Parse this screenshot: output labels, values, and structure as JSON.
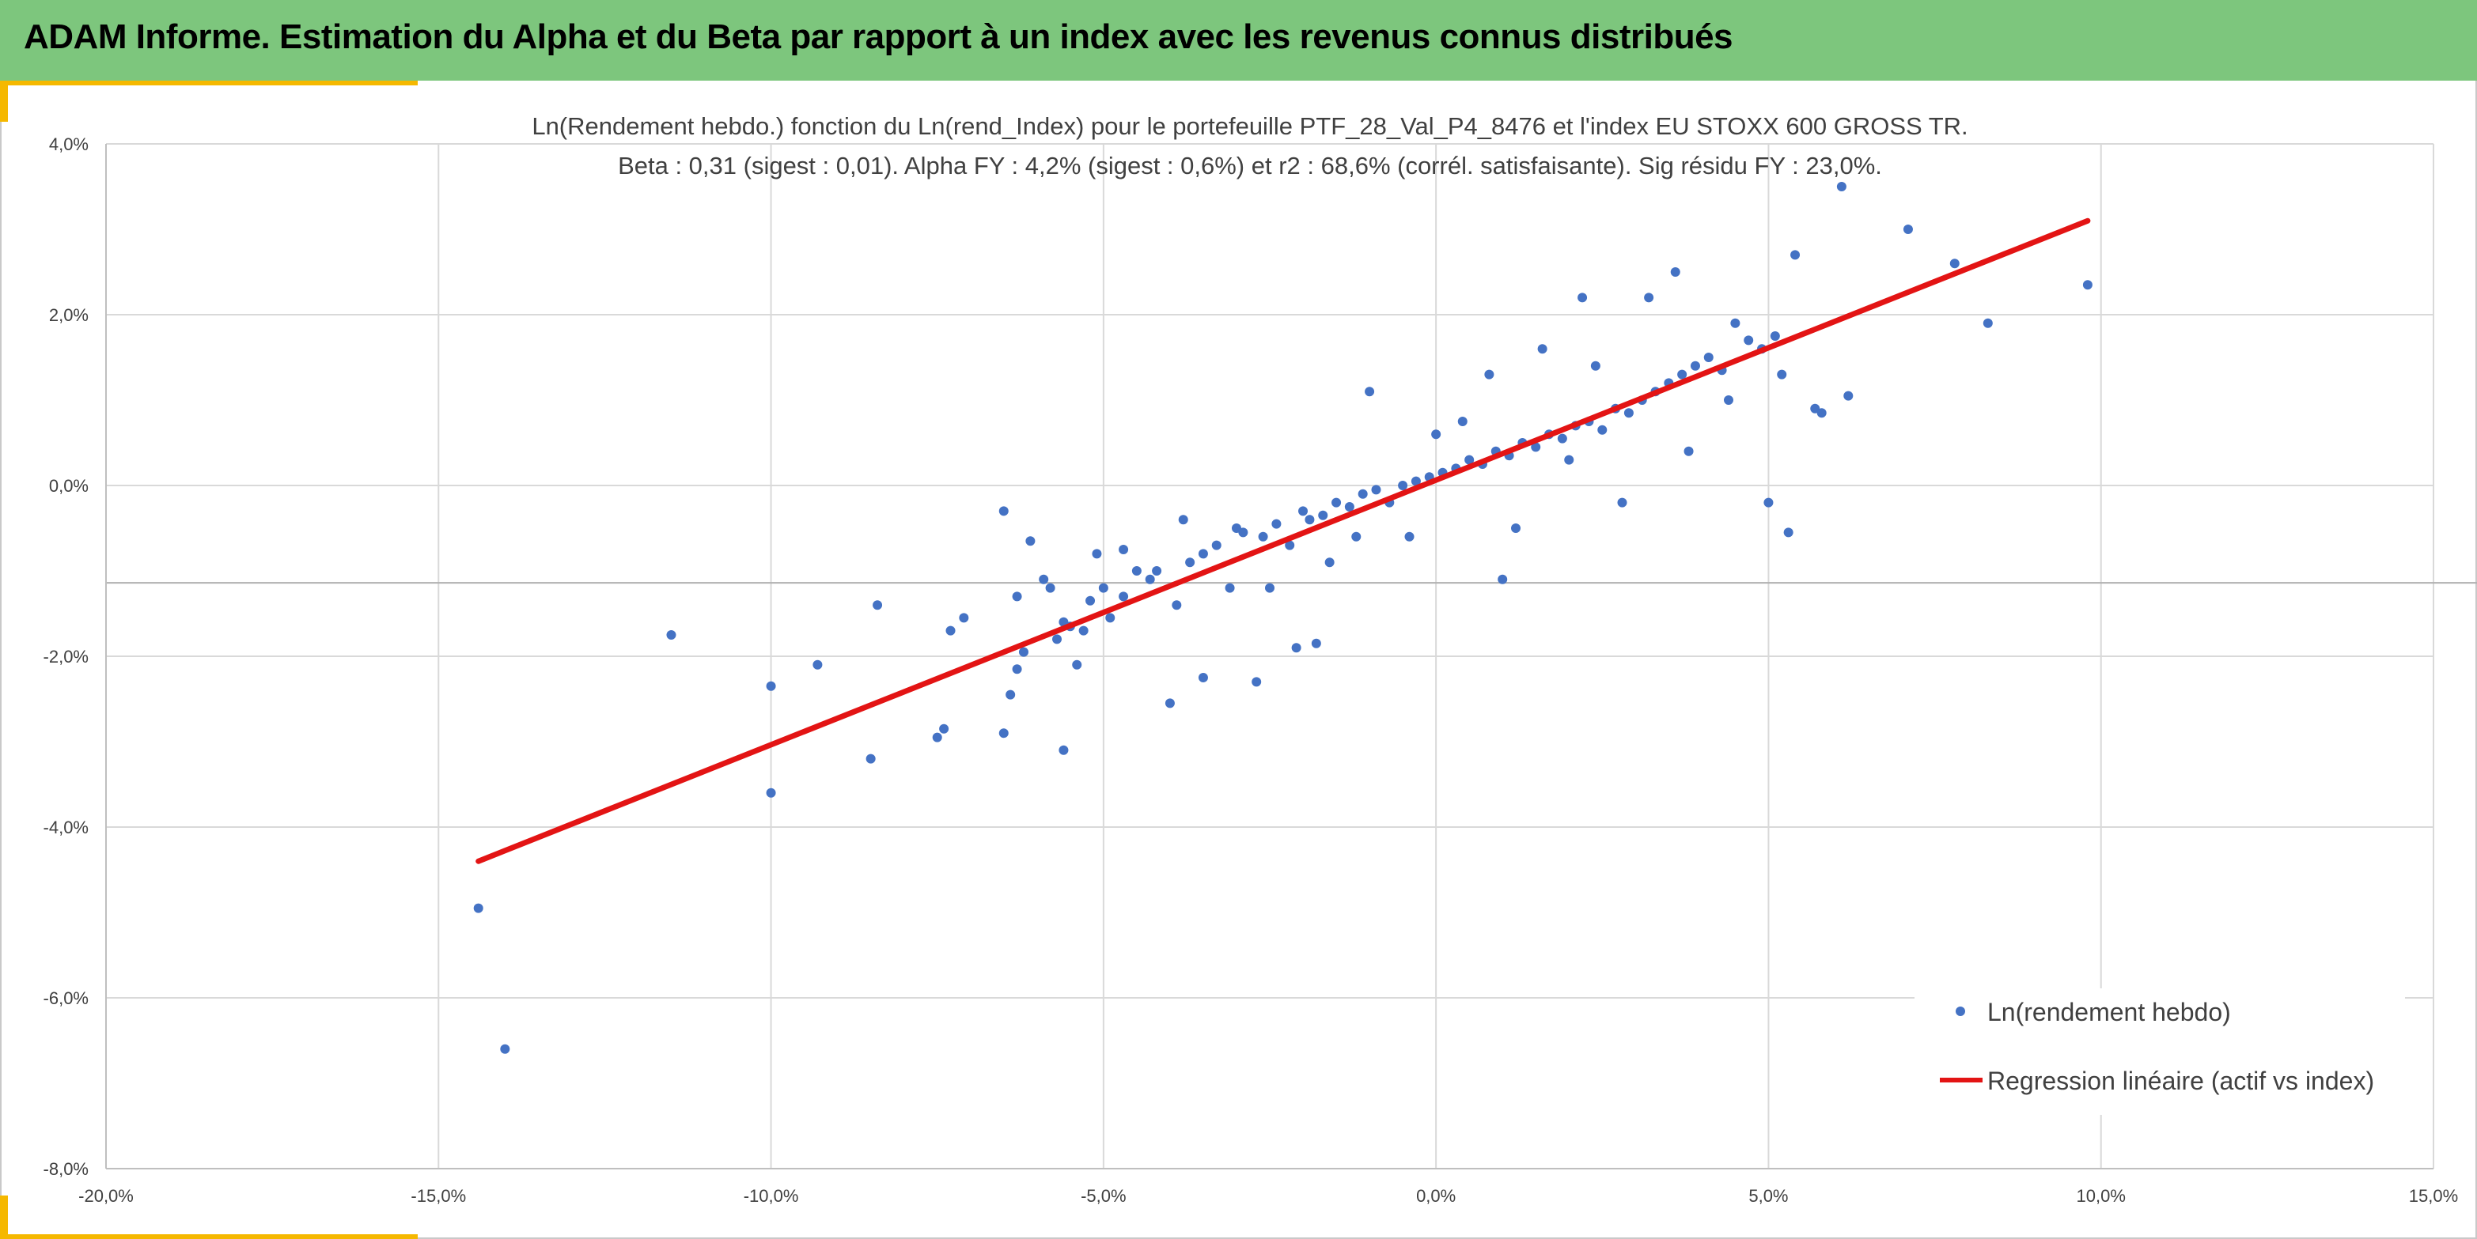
{
  "header": {
    "title": "ADAM Informe. Estimation du Alpha et du Beta par rapport à un index avec les revenus connus distribués"
  },
  "colors": {
    "header_bg": "#7dc67d",
    "accent": "#f5b800",
    "points": "#4472c4",
    "regression": "#e31414",
    "grid": "#d9d9d9"
  },
  "chart_data": {
    "type": "scatter",
    "title_line1": "Ln(Rendement hebdo.) fonction du Ln(rend_Index) pour le portefeuille PTF_28_Val_P4_8476 et l'index EU STOXX 600 GROSS TR.",
    "title_line2": "Beta : 0,31 (sigest : 0,01). Alpha FY : 4,2% (sigest : 0,6%) et r2 : 68,6% (corrél. satisfaisante). Sig résidu FY : 23,0%.",
    "xlim": [
      -20,
      15
    ],
    "ylim": [
      -8,
      4
    ],
    "x_ticks": [
      -20,
      -15,
      -10,
      -5,
      0,
      5,
      10,
      15
    ],
    "y_ticks": [
      -8,
      -6,
      -4,
      -2,
      0,
      2,
      4
    ],
    "x_tick_labels": [
      "-20,0%",
      "-15,0%",
      "-10,0%",
      "-5,0%",
      "0,0%",
      "5,0%",
      "10,0%",
      "15,0%"
    ],
    "y_tick_labels": [
      "-8,0%",
      "-6,0%",
      "-4,0%",
      "-2,0%",
      "0,0%",
      "2,0%",
      "4,0%"
    ],
    "grid": true,
    "legend_position": "bottom-right",
    "series": [
      {
        "name": "Ln(rendement hebdo)",
        "kind": "scatter",
        "x": [
          -14.4,
          -14.0,
          -11.5,
          -10.0,
          -10.0,
          -9.3,
          -8.5,
          -8.4,
          -7.5,
          -7.4,
          -7.3,
          -7.1,
          -6.5,
          -6.4,
          -6.3,
          -6.2,
          -6.1,
          -5.9,
          -5.8,
          -5.7,
          -5.6,
          -5.5,
          -5.4,
          -5.3,
          -5.2,
          -5.0,
          -4.9,
          -4.7,
          -4.5,
          -4.3,
          -4.0,
          -3.9,
          -3.7,
          -3.5,
          -3.3,
          -3.1,
          -2.9,
          -2.6,
          -2.4,
          -2.2,
          -2.0,
          -1.9,
          -1.7,
          -1.5,
          -1.3,
          -1.1,
          -0.9,
          -0.7,
          -0.5,
          -0.3,
          -0.1,
          0.1,
          0.3,
          0.5,
          0.7,
          0.9,
          1.1,
          1.3,
          1.5,
          1.7,
          1.9,
          2.1,
          2.3,
          2.5,
          2.7,
          2.9,
          3.1,
          3.3,
          3.5,
          3.7,
          3.9,
          4.1,
          4.3,
          4.5,
          4.7,
          4.9,
          5.0,
          5.1,
          5.3,
          5.4,
          5.7,
          5.8,
          6.1,
          6.2,
          7.1,
          7.8,
          8.3,
          9.8,
          -6.5,
          -5.6,
          -4.7,
          -3.5,
          -2.7,
          -2.1,
          -1.8,
          -1.2,
          1.0,
          2.2,
          3.6,
          5.2,
          -6.3,
          -5.1,
          -4.2,
          -3.8,
          -3.0,
          -2.5,
          -1.6,
          -1.0,
          -0.4,
          0.0,
          0.4,
          0.8,
          1.2,
          1.6,
          2.0,
          2.4,
          2.8,
          3.2,
          3.8,
          4.4
        ],
        "y": [
          -4.95,
          -6.6,
          -1.75,
          -2.35,
          -3.6,
          -2.1,
          -3.2,
          -1.4,
          -2.95,
          -2.85,
          -1.7,
          -1.55,
          -2.9,
          -2.45,
          -2.15,
          -1.95,
          -0.65,
          -1.1,
          -1.2,
          -1.8,
          -3.1,
          -1.65,
          -2.1,
          -1.7,
          -1.35,
          -1.2,
          -1.55,
          -1.3,
          -1.0,
          -1.1,
          -2.55,
          -1.4,
          -0.9,
          -0.8,
          -0.7,
          -1.2,
          -0.55,
          -0.6,
          -0.45,
          -0.7,
          -0.3,
          -0.4,
          -0.35,
          -0.2,
          -0.25,
          -0.1,
          -0.05,
          -0.2,
          0.0,
          0.05,
          0.1,
          0.15,
          0.2,
          0.3,
          0.25,
          0.4,
          0.35,
          0.5,
          0.45,
          0.6,
          0.55,
          0.7,
          0.75,
          0.65,
          0.9,
          0.85,
          1.0,
          1.1,
          1.2,
          1.3,
          1.4,
          1.5,
          1.35,
          1.9,
          1.7,
          1.6,
          -0.2,
          1.75,
          -0.55,
          2.7,
          0.9,
          0.85,
          3.5,
          1.05,
          3.0,
          2.6,
          1.9,
          2.35,
          -0.3,
          -1.6,
          -0.75,
          -2.25,
          -2.3,
          -1.9,
          -1.85,
          -0.6,
          -1.1,
          2.2,
          2.5,
          1.3,
          -1.3,
          -0.8,
          -1.0,
          -0.4,
          -0.5,
          -1.2,
          -0.9,
          1.1,
          -0.6,
          0.6,
          0.75,
          1.3,
          -0.5,
          1.6,
          0.3,
          1.4,
          -0.2,
          2.2,
          0.4,
          1.0
        ],
        "color": "#4472c4"
      },
      {
        "name": "Regression linéaire (actif vs index)",
        "kind": "line",
        "x": [
          -14.4,
          9.8
        ],
        "y": [
          -4.4,
          3.1
        ],
        "color": "#e31414"
      }
    ]
  }
}
